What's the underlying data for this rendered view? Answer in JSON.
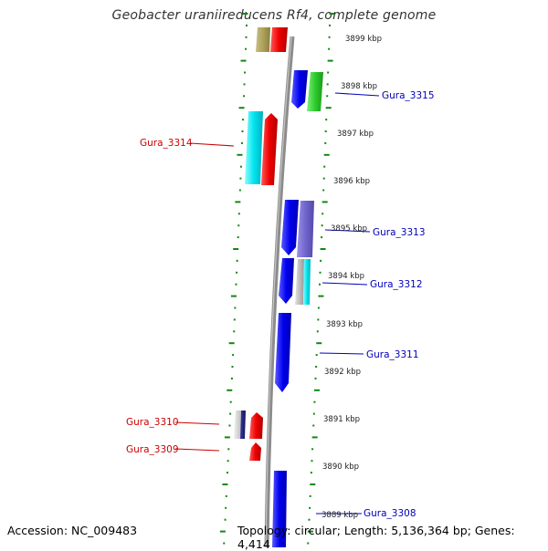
{
  "title": "Geobacter uraniireducens Rf4, complete genome",
  "accession": "Accession: NC_009483",
  "summary": "Topology: circular; Length: 5,136,364 bp; Genes: 4,414",
  "colors": {
    "forward_label": "#0000bb",
    "reverse_label": "#cc0000",
    "tick_dots": "#118811",
    "backbone": "#8c8c8c"
  },
  "ticks": [
    "3899 kbp",
    "3898 kbp",
    "3897 kbp",
    "3896 kbp",
    "3895 kbp",
    "3894 kbp",
    "3893 kbp",
    "3892 kbp",
    "3891 kbp",
    "3890 kbp",
    "3889 kbp"
  ],
  "gene_labels": [
    {
      "text": "Gura_3315",
      "strand": "forward"
    },
    {
      "text": "Gura_3314",
      "strand": "reverse"
    },
    {
      "text": "Gura_3313",
      "strand": "forward"
    },
    {
      "text": "Gura_3312",
      "strand": "forward"
    },
    {
      "text": "Gura_3311",
      "strand": "forward"
    },
    {
      "text": "Gura_3310",
      "strand": "reverse"
    },
    {
      "text": "Gura_3309",
      "strand": "reverse"
    },
    {
      "text": "Gura_3308",
      "strand": "forward"
    }
  ]
}
